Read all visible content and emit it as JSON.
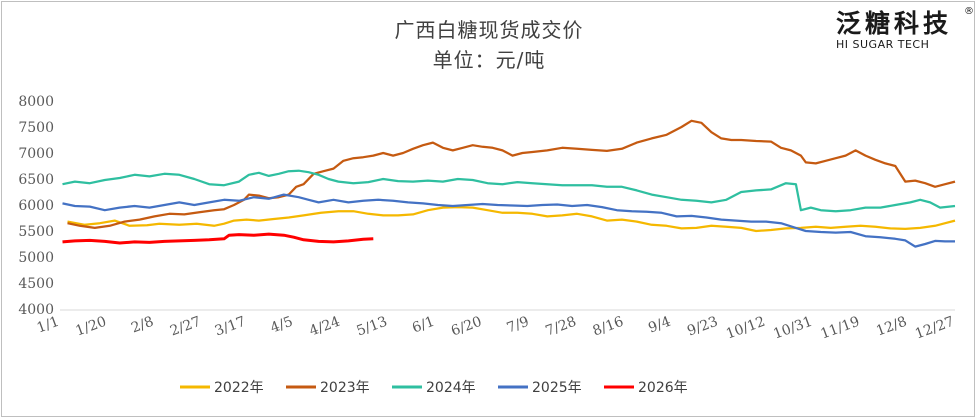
{
  "chart_data": {
    "type": "line",
    "title": "广西白糖现货成交价",
    "subtitle": "单位：元/吨",
    "ylim": [
      4000,
      8000
    ],
    "yticks": [
      4000,
      4500,
      5000,
      5500,
      6000,
      6500,
      7000,
      7500,
      8000
    ],
    "xlim": [
      0,
      360
    ],
    "xticks": [
      {
        "label": "1/1",
        "day": 0
      },
      {
        "label": "1/20",
        "day": 19
      },
      {
        "label": "2/8",
        "day": 38
      },
      {
        "label": "2/27",
        "day": 57
      },
      {
        "label": "3/17",
        "day": 75
      },
      {
        "label": "4/5",
        "day": 94
      },
      {
        "label": "4/24",
        "day": 113
      },
      {
        "label": "5/13",
        "day": 132
      },
      {
        "label": "6/1",
        "day": 151
      },
      {
        "label": "6/20",
        "day": 170
      },
      {
        "label": "7/9",
        "day": 189
      },
      {
        "label": "7/28",
        "day": 208
      },
      {
        "label": "8/16",
        "day": 227
      },
      {
        "label": "9/4",
        "day": 246
      },
      {
        "label": "9/23",
        "day": 265
      },
      {
        "label": "10/12",
        "day": 284
      },
      {
        "label": "10/31",
        "day": 303
      },
      {
        "label": "11/19",
        "day": 322
      },
      {
        "label": "12/8",
        "day": 341
      },
      {
        "label": "12/27",
        "day": 360
      }
    ],
    "grid": false,
    "legend_position": "bottom",
    "series": [
      {
        "name": "2022年",
        "color": "#f5b800",
        "points": [
          [
            3,
            5680
          ],
          [
            10,
            5620
          ],
          [
            16,
            5650
          ],
          [
            22,
            5700
          ],
          [
            28,
            5600
          ],
          [
            35,
            5610
          ],
          [
            40,
            5640
          ],
          [
            48,
            5620
          ],
          [
            55,
            5640
          ],
          [
            62,
            5600
          ],
          [
            66,
            5640
          ],
          [
            70,
            5700
          ],
          [
            75,
            5720
          ],
          [
            80,
            5700
          ],
          [
            86,
            5730
          ],
          [
            92,
            5760
          ],
          [
            98,
            5800
          ],
          [
            105,
            5850
          ],
          [
            112,
            5880
          ],
          [
            118,
            5880
          ],
          [
            124,
            5830
          ],
          [
            130,
            5800
          ],
          [
            136,
            5800
          ],
          [
            142,
            5820
          ],
          [
            148,
            5900
          ],
          [
            154,
            5950
          ],
          [
            160,
            5960
          ],
          [
            166,
            5950
          ],
          [
            172,
            5900
          ],
          [
            178,
            5850
          ],
          [
            184,
            5850
          ],
          [
            190,
            5830
          ],
          [
            196,
            5780
          ],
          [
            202,
            5800
          ],
          [
            208,
            5830
          ],
          [
            214,
            5780
          ],
          [
            220,
            5700
          ],
          [
            226,
            5720
          ],
          [
            232,
            5680
          ],
          [
            238,
            5620
          ],
          [
            244,
            5600
          ],
          [
            250,
            5550
          ],
          [
            256,
            5560
          ],
          [
            262,
            5600
          ],
          [
            268,
            5580
          ],
          [
            274,
            5560
          ],
          [
            280,
            5500
          ],
          [
            286,
            5520
          ],
          [
            292,
            5550
          ],
          [
            298,
            5560
          ],
          [
            304,
            5580
          ],
          [
            310,
            5560
          ],
          [
            316,
            5580
          ],
          [
            322,
            5600
          ],
          [
            328,
            5580
          ],
          [
            334,
            5550
          ],
          [
            340,
            5540
          ],
          [
            346,
            5560
          ],
          [
            352,
            5600
          ],
          [
            356,
            5650
          ],
          [
            360,
            5700
          ]
        ]
      },
      {
        "name": "2023年",
        "color": "#c55a11",
        "points": [
          [
            3,
            5650
          ],
          [
            8,
            5600
          ],
          [
            14,
            5560
          ],
          [
            20,
            5600
          ],
          [
            26,
            5680
          ],
          [
            32,
            5720
          ],
          [
            38,
            5780
          ],
          [
            44,
            5830
          ],
          [
            50,
            5820
          ],
          [
            56,
            5860
          ],
          [
            62,
            5900
          ],
          [
            66,
            5920
          ],
          [
            70,
            6000
          ],
          [
            74,
            6100
          ],
          [
            76,
            6200
          ],
          [
            80,
            6180
          ],
          [
            84,
            6130
          ],
          [
            88,
            6150
          ],
          [
            92,
            6200
          ],
          [
            95,
            6350
          ],
          [
            98,
            6400
          ],
          [
            102,
            6600
          ],
          [
            106,
            6650
          ],
          [
            110,
            6700
          ],
          [
            114,
            6850
          ],
          [
            118,
            6900
          ],
          [
            122,
            6920
          ],
          [
            126,
            6950
          ],
          [
            130,
            7000
          ],
          [
            134,
            6950
          ],
          [
            138,
            7000
          ],
          [
            142,
            7080
          ],
          [
            146,
            7150
          ],
          [
            150,
            7200
          ],
          [
            154,
            7100
          ],
          [
            158,
            7050
          ],
          [
            162,
            7100
          ],
          [
            166,
            7150
          ],
          [
            170,
            7120
          ],
          [
            174,
            7100
          ],
          [
            178,
            7050
          ],
          [
            182,
            6950
          ],
          [
            186,
            7000
          ],
          [
            190,
            7020
          ],
          [
            196,
            7050
          ],
          [
            202,
            7100
          ],
          [
            208,
            7080
          ],
          [
            214,
            7060
          ],
          [
            220,
            7040
          ],
          [
            226,
            7080
          ],
          [
            232,
            7200
          ],
          [
            238,
            7280
          ],
          [
            244,
            7350
          ],
          [
            250,
            7500
          ],
          [
            254,
            7620
          ],
          [
            258,
            7580
          ],
          [
            262,
            7400
          ],
          [
            266,
            7280
          ],
          [
            270,
            7250
          ],
          [
            274,
            7250
          ],
          [
            280,
            7230
          ],
          [
            286,
            7220
          ],
          [
            290,
            7100
          ],
          [
            294,
            7050
          ],
          [
            298,
            6950
          ],
          [
            300,
            6820
          ],
          [
            304,
            6800
          ],
          [
            308,
            6850
          ],
          [
            312,
            6900
          ],
          [
            316,
            6950
          ],
          [
            320,
            7050
          ],
          [
            324,
            6950
          ],
          [
            328,
            6870
          ],
          [
            332,
            6800
          ],
          [
            336,
            6750
          ],
          [
            340,
            6450
          ],
          [
            344,
            6470
          ],
          [
            348,
            6420
          ],
          [
            352,
            6350
          ],
          [
            356,
            6400
          ],
          [
            360,
            6450
          ]
        ]
      },
      {
        "name": "2024年",
        "color": "#2fbfa0",
        "points": [
          [
            1,
            6400
          ],
          [
            6,
            6450
          ],
          [
            12,
            6420
          ],
          [
            18,
            6480
          ],
          [
            24,
            6520
          ],
          [
            30,
            6580
          ],
          [
            36,
            6550
          ],
          [
            42,
            6600
          ],
          [
            48,
            6580
          ],
          [
            54,
            6500
          ],
          [
            60,
            6400
          ],
          [
            66,
            6380
          ],
          [
            72,
            6450
          ],
          [
            76,
            6580
          ],
          [
            80,
            6620
          ],
          [
            84,
            6560
          ],
          [
            88,
            6600
          ],
          [
            92,
            6650
          ],
          [
            96,
            6660
          ],
          [
            100,
            6630
          ],
          [
            104,
            6580
          ],
          [
            108,
            6500
          ],
          [
            112,
            6450
          ],
          [
            118,
            6420
          ],
          [
            124,
            6440
          ],
          [
            130,
            6500
          ],
          [
            136,
            6460
          ],
          [
            142,
            6450
          ],
          [
            148,
            6470
          ],
          [
            154,
            6450
          ],
          [
            160,
            6500
          ],
          [
            166,
            6480
          ],
          [
            172,
            6420
          ],
          [
            178,
            6400
          ],
          [
            184,
            6440
          ],
          [
            190,
            6420
          ],
          [
            196,
            6400
          ],
          [
            202,
            6380
          ],
          [
            208,
            6380
          ],
          [
            214,
            6380
          ],
          [
            220,
            6350
          ],
          [
            226,
            6350
          ],
          [
            232,
            6280
          ],
          [
            238,
            6200
          ],
          [
            244,
            6150
          ],
          [
            250,
            6100
          ],
          [
            256,
            6080
          ],
          [
            262,
            6050
          ],
          [
            268,
            6100
          ],
          [
            274,
            6250
          ],
          [
            280,
            6280
          ],
          [
            286,
            6300
          ],
          [
            292,
            6420
          ],
          [
            296,
            6400
          ],
          [
            298,
            5900
          ],
          [
            302,
            5950
          ],
          [
            306,
            5900
          ],
          [
            312,
            5880
          ],
          [
            318,
            5900
          ],
          [
            324,
            5950
          ],
          [
            330,
            5950
          ],
          [
            336,
            6000
          ],
          [
            342,
            6050
          ],
          [
            346,
            6100
          ],
          [
            350,
            6050
          ],
          [
            354,
            5950
          ],
          [
            360,
            5980
          ]
        ]
      },
      {
        "name": "2025年",
        "color": "#4472c4",
        "points": [
          [
            1,
            6030
          ],
          [
            6,
            5980
          ],
          [
            12,
            5970
          ],
          [
            18,
            5900
          ],
          [
            24,
            5950
          ],
          [
            30,
            5980
          ],
          [
            36,
            5950
          ],
          [
            42,
            6000
          ],
          [
            48,
            6050
          ],
          [
            54,
            6000
          ],
          [
            60,
            6050
          ],
          [
            66,
            6100
          ],
          [
            72,
            6080
          ],
          [
            78,
            6150
          ],
          [
            84,
            6120
          ],
          [
            90,
            6200
          ],
          [
            96,
            6150
          ],
          [
            100,
            6100
          ],
          [
            104,
            6050
          ],
          [
            110,
            6100
          ],
          [
            116,
            6050
          ],
          [
            122,
            6080
          ],
          [
            128,
            6100
          ],
          [
            134,
            6080
          ],
          [
            140,
            6050
          ],
          [
            146,
            6030
          ],
          [
            152,
            6000
          ],
          [
            158,
            5980
          ],
          [
            164,
            6000
          ],
          [
            170,
            6020
          ],
          [
            176,
            6000
          ],
          [
            182,
            5990
          ],
          [
            188,
            5980
          ],
          [
            194,
            6000
          ],
          [
            200,
            6010
          ],
          [
            206,
            5980
          ],
          [
            212,
            6000
          ],
          [
            218,
            5960
          ],
          [
            224,
            5900
          ],
          [
            230,
            5880
          ],
          [
            236,
            5870
          ],
          [
            242,
            5850
          ],
          [
            248,
            5780
          ],
          [
            254,
            5790
          ],
          [
            260,
            5760
          ],
          [
            266,
            5720
          ],
          [
            272,
            5700
          ],
          [
            278,
            5680
          ],
          [
            284,
            5680
          ],
          [
            290,
            5650
          ],
          [
            296,
            5560
          ],
          [
            300,
            5500
          ],
          [
            306,
            5480
          ],
          [
            312,
            5470
          ],
          [
            318,
            5480
          ],
          [
            324,
            5400
          ],
          [
            330,
            5380
          ],
          [
            336,
            5350
          ],
          [
            340,
            5320
          ],
          [
            344,
            5200
          ],
          [
            348,
            5250
          ],
          [
            352,
            5310
          ],
          [
            356,
            5300
          ],
          [
            360,
            5300
          ]
        ]
      },
      {
        "name": "2026年",
        "color": "#ff0000",
        "points": [
          [
            1,
            5290
          ],
          [
            6,
            5310
          ],
          [
            12,
            5320
          ],
          [
            18,
            5300
          ],
          [
            24,
            5270
          ],
          [
            30,
            5290
          ],
          [
            36,
            5280
          ],
          [
            42,
            5300
          ],
          [
            48,
            5310
          ],
          [
            54,
            5320
          ],
          [
            60,
            5330
          ],
          [
            66,
            5350
          ],
          [
            68,
            5420
          ],
          [
            72,
            5430
          ],
          [
            78,
            5420
          ],
          [
            84,
            5440
          ],
          [
            90,
            5420
          ],
          [
            94,
            5380
          ],
          [
            98,
            5330
          ],
          [
            104,
            5300
          ],
          [
            110,
            5290
          ],
          [
            116,
            5310
          ],
          [
            122,
            5340
          ],
          [
            126,
            5350
          ]
        ]
      }
    ]
  },
  "logo": {
    "cn": "泛糖科技",
    "en": "HI SUGAR TECH",
    "reg": "®"
  }
}
